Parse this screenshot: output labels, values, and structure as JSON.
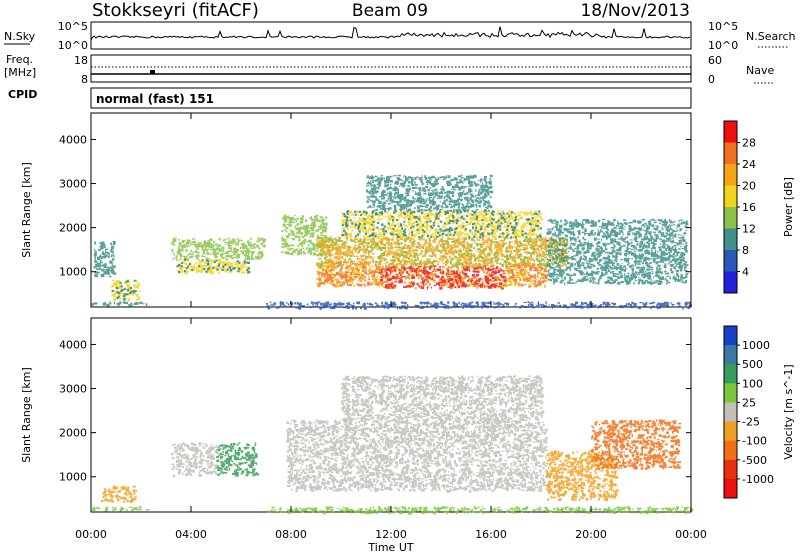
{
  "header": {
    "station": "Stokkseyri (fitACF)",
    "beam": "Beam 09",
    "date": "18/Nov/2013"
  },
  "status_panels": {
    "nsky": {
      "label": "N.Sky",
      "top_tick": "10^5",
      "bottom_tick": "10^0"
    },
    "nsearch": {
      "label": "N.Search",
      "top_tick": "10^5",
      "bottom_tick": "10^0"
    },
    "freq": {
      "label": "Freq.",
      "unit": "[MHz]",
      "top_tick": "18",
      "bottom_tick": "8"
    },
    "nave": {
      "label": "Nave",
      "top_tick": "60",
      "bottom_tick": "0"
    },
    "cpid": {
      "label": "CPID",
      "value": "normal (fast) 151"
    }
  },
  "chart_data": [
    {
      "type": "heatmap",
      "name": "power",
      "ylabel": "Slant Range [km]",
      "ylim": [
        200,
        4600
      ],
      "yticks": [
        1000,
        2000,
        3000,
        4000
      ],
      "x_tick_hours": [
        0,
        4,
        8,
        12,
        16,
        20,
        24
      ],
      "colorbar": {
        "label": "Power [dB]",
        "ticks": [
          "4",
          "8",
          "12",
          "16",
          "20",
          "24",
          "28"
        ],
        "colors": [
          "#2222dd",
          "#2a57b8",
          "#3f8f8a",
          "#8bc34a",
          "#f2d41e",
          "#f5a515",
          "#f07020",
          "#ee1010"
        ],
        "range": [
          0,
          32
        ]
      },
      "regions": [
        {
          "t0": 0.0,
          "t1": 2.2,
          "r0": 250,
          "r1": 330,
          "v": 8
        },
        {
          "t0": 0.1,
          "t1": 0.9,
          "r0": 900,
          "r1": 1700,
          "v": 10
        },
        {
          "t0": 0.8,
          "t1": 1.9,
          "r0": 380,
          "r1": 820,
          "v": 18
        },
        {
          "t0": 3.2,
          "t1": 6.9,
          "r0": 1300,
          "r1": 1780,
          "v": 12
        },
        {
          "t0": 3.4,
          "t1": 6.3,
          "r0": 1000,
          "r1": 1300,
          "v": 18
        },
        {
          "t0": 7.6,
          "t1": 9.4,
          "r0": 1400,
          "r1": 2300,
          "v": 14
        },
        {
          "t0": 9.0,
          "t1": 11.5,
          "r0": 700,
          "r1": 1250,
          "v": 26
        },
        {
          "t0": 11.5,
          "t1": 16.5,
          "r0": 650,
          "r1": 1150,
          "v": 30
        },
        {
          "t0": 16.5,
          "t1": 18.2,
          "r0": 700,
          "r1": 1200,
          "v": 26
        },
        {
          "t0": 9.0,
          "t1": 19.0,
          "r0": 1150,
          "r1": 1800,
          "v": 20
        },
        {
          "t0": 10.0,
          "t1": 18.0,
          "r0": 1800,
          "r1": 2400,
          "v": 16
        },
        {
          "t0": 11.0,
          "t1": 16.0,
          "r0": 2400,
          "r1": 3200,
          "v": 10
        },
        {
          "t0": 18.2,
          "t1": 23.8,
          "r0": 750,
          "r1": 2200,
          "v": 10
        },
        {
          "t0": 7.0,
          "t1": 24.0,
          "r0": 200,
          "r1": 330,
          "v": 6
        }
      ]
    },
    {
      "type": "heatmap",
      "name": "velocity",
      "ylabel": "Slant Range [km]",
      "xlabel": "Time UT",
      "ylim": [
        200,
        4600
      ],
      "yticks": [
        1000,
        2000,
        3000,
        4000
      ],
      "x_tick_labels": [
        "00:00",
        "04:00",
        "08:00",
        "12:00",
        "16:00",
        "20:00",
        "00:00"
      ],
      "x_tick_hours": [
        0,
        4,
        8,
        12,
        16,
        20,
        24
      ],
      "colorbar": {
        "label": "Velocity [m s^-1]",
        "ticks": [
          "1000",
          "500",
          "100",
          "25",
          "-25",
          "-100",
          "-500",
          "-1000"
        ],
        "colors": [
          "#1a40c8",
          "#3a78a8",
          "#3a9c5a",
          "#7ac83a",
          "#c0c0b8",
          "#f0a020",
          "#f07018",
          "#e83010",
          "#ee1010"
        ]
      },
      "regions": [
        {
          "t0": 0.0,
          "t1": 2.2,
          "r0": 250,
          "r1": 330,
          "c": 3
        },
        {
          "t0": 0.4,
          "t1": 1.8,
          "r0": 450,
          "r1": 800,
          "c": 5
        },
        {
          "t0": 3.2,
          "t1": 5.0,
          "r0": 1050,
          "r1": 1780,
          "c": 4
        },
        {
          "t0": 5.0,
          "t1": 6.6,
          "r0": 1050,
          "r1": 1780,
          "c": 2
        },
        {
          "t0": 7.8,
          "t1": 18.2,
          "r0": 700,
          "r1": 2300,
          "c": 4
        },
        {
          "t0": 10.0,
          "t1": 18.0,
          "r0": 2300,
          "r1": 3300,
          "c": 4
        },
        {
          "t0": 18.2,
          "t1": 21.0,
          "r0": 500,
          "r1": 1600,
          "c": 5
        },
        {
          "t0": 20.0,
          "t1": 23.5,
          "r0": 1200,
          "r1": 2300,
          "c": 6
        },
        {
          "t0": 7.0,
          "t1": 24.0,
          "r0": 200,
          "r1": 330,
          "c": 3
        }
      ]
    }
  ]
}
